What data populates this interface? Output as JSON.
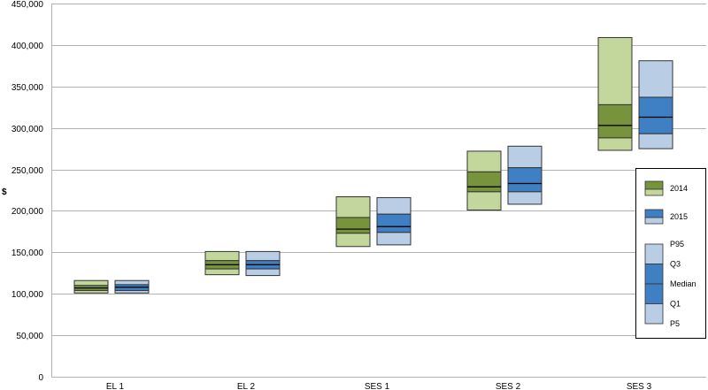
{
  "chart_data": {
    "type": "box",
    "title": "",
    "xlabel": "",
    "ylabel": "$",
    "ylim": [
      0,
      450000
    ],
    "y_ticks": [
      0,
      50000,
      100000,
      150000,
      200000,
      250000,
      300000,
      350000,
      400000,
      450000
    ],
    "y_tick_labels": [
      "0",
      "50,000",
      "100,000",
      "150,000",
      "200,000",
      "250,000",
      "300,000",
      "350,000",
      "400,000",
      "450,000"
    ],
    "grid": true,
    "legend_position": "right",
    "categories": [
      "EL 1",
      "EL 2",
      "SES 1",
      "SES 2",
      "SES 3"
    ],
    "series": [
      {
        "name": "2014",
        "light_color": "#c3d69b",
        "dark_color": "#77933c",
        "stats": [
          {
            "p5": 101000,
            "q1": 104000,
            "median": 107000,
            "q3": 110000,
            "p95": 116000
          },
          {
            "p5": 123000,
            "q1": 130000,
            "median": 135000,
            "q3": 140000,
            "p95": 151000
          },
          {
            "p5": 157000,
            "q1": 173000,
            "median": 178000,
            "q3": 192000,
            "p95": 217000
          },
          {
            "p5": 201000,
            "q1": 223000,
            "median": 229000,
            "q3": 247000,
            "p95": 272000
          },
          {
            "p5": 273000,
            "q1": 288000,
            "median": 303000,
            "q3": 328000,
            "p95": 409000
          }
        ]
      },
      {
        "name": "2015",
        "light_color": "#b9cde5",
        "dark_color": "#3f7fc4",
        "stats": [
          {
            "p5": 101000,
            "q1": 104000,
            "median": 108000,
            "q3": 111000,
            "p95": 116000
          },
          {
            "p5": 122000,
            "q1": 130000,
            "median": 135000,
            "q3": 140000,
            "p95": 151000
          },
          {
            "p5": 159000,
            "q1": 174000,
            "median": 181000,
            "q3": 196000,
            "p95": 216000
          },
          {
            "p5": 208000,
            "q1": 223000,
            "median": 233000,
            "q3": 252000,
            "p95": 278000
          },
          {
            "p5": 275000,
            "q1": 293000,
            "median": 313000,
            "q3": 337000,
            "p95": 381000
          }
        ]
      }
    ],
    "legend": {
      "stat_labels": [
        "P95",
        "Q3",
        "Median",
        "Q1",
        "P5"
      ]
    }
  }
}
